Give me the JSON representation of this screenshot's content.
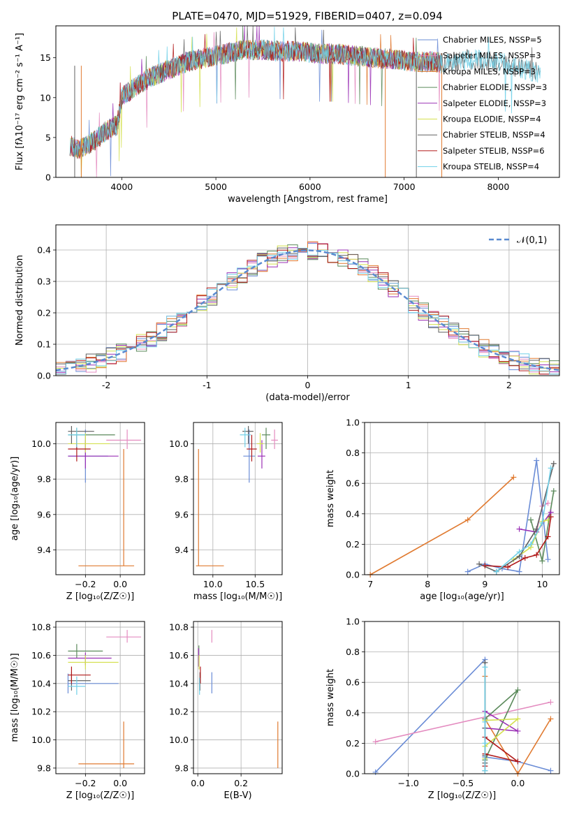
{
  "figure": {
    "title": "PLATE=0470, MJD=51929, FIBERID=0407, z=0.094"
  },
  "chart_data": [
    {
      "id": "spectrum",
      "type": "line",
      "title": "PLATE=0470, MJD=51929, FIBERID=0407, z=0.094",
      "xlabel": "wavelength [Angstrom, rest frame]",
      "ylabel": "Flux [fλ10⁻¹⁷ erg cm⁻² s⁻¹ A⁻¹]",
      "xlim": [
        3300,
        8650
      ],
      "ylim": [
        0,
        19
      ],
      "xticks": [
        4000,
        5000,
        6000,
        7000,
        8000
      ],
      "yticks": [
        0,
        5,
        10,
        15
      ],
      "grid": false,
      "legend_position": "top-right",
      "anchors_x": [
        3450,
        3550,
        3700,
        3850,
        3950,
        4000,
        4100,
        4300,
        4500,
        4700,
        4900,
        5100,
        5300,
        5500,
        5700,
        5900,
        6100,
        6300,
        6500,
        6700,
        6900,
        7100,
        7300,
        7400
      ],
      "anchors_y": [
        4,
        3.5,
        4.5,
        6,
        6.5,
        10,
        11,
        12.5,
        13.5,
        14.5,
        15,
        15.5,
        16,
        16,
        15.8,
        15.8,
        15.5,
        15.5,
        15.2,
        15.0,
        14.8,
        14.5,
        14.5,
        14.3
      ],
      "tail_x": [
        7400,
        7700,
        8000,
        8300,
        8450
      ],
      "tail_y": [
        14.3,
        14.8,
        14.5,
        13.5,
        13.0
      ],
      "series": [
        {
          "name": "Chabrier MILES, NSSP=5",
          "color": "#6a8cd6"
        },
        {
          "name": "Salpeter MILES, NSSP=3",
          "color": "#e48cc0"
        },
        {
          "name": "Kroupa MILES, NSSP=3",
          "color": "#e07a30"
        },
        {
          "name": "Chabrier ELODIE, NSSP=3",
          "color": "#5b8a5b"
        },
        {
          "name": "Salpeter ELODIE, NSSP=3",
          "color": "#9a30b5"
        },
        {
          "name": "Kroupa ELODIE, NSSP=4",
          "color": "#d4e050"
        },
        {
          "name": "Chabrier STELIB, NSSP=4",
          "color": "#606060"
        },
        {
          "name": "Salpeter STELIB, NSSP=6",
          "color": "#b01818"
        },
        {
          "name": "Kroupa STELIB, NSSP=4",
          "color": "#70d0e8"
        }
      ]
    },
    {
      "id": "residuals",
      "type": "histogram",
      "xlabel": "(data-model)/error",
      "ylabel": "Normed distribution",
      "xlim": [
        -2.5,
        2.5
      ],
      "ylim": [
        0,
        0.48
      ],
      "xticks": [
        -2,
        -1,
        0,
        1,
        2
      ],
      "yticks": [
        0.0,
        0.1,
        0.2,
        0.3,
        0.4
      ],
      "grid": true,
      "legend_position": "top-right",
      "reference_curve": {
        "name": "𝒩(0,1)",
        "color": "#5a8ad0",
        "mean": 0,
        "sigma": 1
      },
      "bin_width": 0.1
    },
    {
      "id": "age_vs_Z",
      "type": "scatter",
      "xlabel": "Z [log₁₀(Z/Z☉)]",
      "ylabel": "age  [log₁₀(age/yr)]",
      "xlim": [
        -0.37,
        0.14
      ],
      "ylim": [
        9.26,
        10.12
      ],
      "xticks": [
        -0.2,
        0.0
      ],
      "yticks": [
        9.4,
        9.6,
        9.8,
        10.0
      ],
      "grid": true,
      "errorbars": [
        {
          "color": "#6a8cd6",
          "x": -0.2,
          "y": 9.93,
          "xlo": -0.3,
          "xhi": -0.07,
          "ylo": 9.78,
          "yhi": 10.08
        },
        {
          "color": "#e48cc0",
          "x": 0.04,
          "y": 10.02,
          "xlo": -0.08,
          "xhi": 0.12,
          "ylo": 9.97,
          "yhi": 10.08
        },
        {
          "color": "#e07a30",
          "x": 0.02,
          "y": 9.31,
          "xlo": -0.24,
          "xhi": 0.08,
          "ylo": 9.31,
          "yhi": 9.97
        },
        {
          "color": "#5b8a5b",
          "x": -0.25,
          "y": 10.05,
          "xlo": -0.3,
          "xhi": -0.03,
          "ylo": 9.97,
          "yhi": 10.09
        },
        {
          "color": "#9a30b5",
          "x": -0.2,
          "y": 9.93,
          "xlo": -0.3,
          "xhi": -0.01,
          "ylo": 9.86,
          "yhi": 10.02
        },
        {
          "color": "#d4e050",
          "x": -0.2,
          "y": 10.0,
          "xlo": -0.3,
          "xhi": -0.06,
          "ylo": 9.95,
          "yhi": 10.06
        },
        {
          "color": "#606060",
          "x": -0.28,
          "y": 10.07,
          "xlo": -0.3,
          "xhi": -0.15,
          "ylo": 10.0,
          "yhi": 10.1
        },
        {
          "color": "#b01818",
          "x": -0.25,
          "y": 9.97,
          "xlo": -0.3,
          "xhi": -0.17,
          "ylo": 9.9,
          "yhi": 10.05
        },
        {
          "color": "#70d0e8",
          "x": -0.25,
          "y": 10.05,
          "xlo": -0.3,
          "xhi": -0.2,
          "ylo": 9.98,
          "yhi": 10.09
        }
      ]
    },
    {
      "id": "age_vs_mass",
      "type": "scatter",
      "xlabel": "mass [log₁₀(M/M☉)]",
      "xlim": [
        9.77,
        10.82
      ],
      "ylim": [
        9.26,
        10.12
      ],
      "xticks": [
        10.0,
        10.5
      ],
      "yticks": [
        9.4,
        9.6,
        9.8,
        10.0
      ],
      "grid": true,
      "errorbars": [
        {
          "color": "#6a8cd6",
          "x": 10.43,
          "y": 9.93,
          "xlo": 10.36,
          "xhi": 10.5,
          "ylo": 9.78,
          "yhi": 10.08
        },
        {
          "color": "#e48cc0",
          "x": 10.73,
          "y": 10.02,
          "xlo": 10.69,
          "xhi": 10.77,
          "ylo": 9.97,
          "yhi": 10.08
        },
        {
          "color": "#e07a30",
          "x": 9.83,
          "y": 9.31,
          "xlo": 9.8,
          "xhi": 10.13,
          "ylo": 9.31,
          "yhi": 9.97
        },
        {
          "color": "#5b8a5b",
          "x": 10.63,
          "y": 10.05,
          "xlo": 10.58,
          "xhi": 10.68,
          "ylo": 9.97,
          "yhi": 10.09
        },
        {
          "color": "#9a30b5",
          "x": 10.58,
          "y": 9.93,
          "xlo": 10.53,
          "xhi": 10.62,
          "ylo": 9.86,
          "yhi": 10.02
        },
        {
          "color": "#d4e050",
          "x": 10.56,
          "y": 10.0,
          "xlo": 10.52,
          "xhi": 10.6,
          "ylo": 9.95,
          "yhi": 10.06
        },
        {
          "color": "#606060",
          "x": 10.42,
          "y": 10.07,
          "xlo": 10.35,
          "xhi": 10.48,
          "ylo": 10.0,
          "yhi": 10.1
        },
        {
          "color": "#b01818",
          "x": 10.46,
          "y": 9.97,
          "xlo": 10.4,
          "xhi": 10.52,
          "ylo": 9.9,
          "yhi": 10.05
        },
        {
          "color": "#70d0e8",
          "x": 10.38,
          "y": 10.05,
          "xlo": 10.32,
          "xhi": 10.45,
          "ylo": 9.98,
          "yhi": 10.09
        }
      ]
    },
    {
      "id": "weight_vs_age",
      "type": "line",
      "xlabel": "age  [log₁₀(age/yr)]",
      "ylabel": "mass weight",
      "xlim": [
        6.9,
        10.3
      ],
      "ylim": [
        0,
        1
      ],
      "xticks": [
        7,
        8,
        9,
        10
      ],
      "yticks": [
        0.0,
        0.2,
        0.4,
        0.6,
        0.8,
        1.0
      ],
      "grid": true,
      "series": [
        {
          "color": "#6a8cd6",
          "x": [
            8.7,
            9.0,
            9.3,
            9.6,
            9.9,
            10.1
          ],
          "y": [
            0.02,
            0.07,
            0.04,
            0.02,
            0.75,
            0.1
          ]
        },
        {
          "color": "#e48cc0",
          "x": [
            9.9,
            10.0,
            10.1
          ],
          "y": [
            0.28,
            0.45,
            0.47
          ]
        },
        {
          "color": "#e07a30",
          "x": [
            7.0,
            8.7,
            9.5
          ],
          "y": [
            0.0,
            0.36,
            0.64
          ]
        },
        {
          "color": "#5b8a5b",
          "x": [
            9.8,
            10.0,
            10.2
          ],
          "y": [
            0.36,
            0.09,
            0.55
          ]
        },
        {
          "color": "#9a30b5",
          "x": [
            9.6,
            9.9,
            10.15
          ],
          "y": [
            0.3,
            0.28,
            0.41
          ]
        },
        {
          "color": "#d4e050",
          "x": [
            9.5,
            9.8,
            10.0,
            10.1
          ],
          "y": [
            0.1,
            0.18,
            0.35,
            0.36
          ]
        },
        {
          "color": "#606060",
          "x": [
            8.9,
            9.2,
            9.6,
            9.9,
            10.2
          ],
          "y": [
            0.07,
            0.02,
            0.12,
            0.3,
            0.73
          ]
        },
        {
          "color": "#b01818",
          "x": [
            9.0,
            9.4,
            9.7,
            9.9,
            10.1,
            10.15
          ],
          "y": [
            0.06,
            0.05,
            0.11,
            0.13,
            0.25,
            0.38
          ]
        },
        {
          "color": "#70d0e8",
          "x": [
            9.2,
            9.6,
            9.8,
            10.0,
            10.15
          ],
          "y": [
            0.02,
            0.15,
            0.2,
            0.34,
            0.7
          ]
        }
      ]
    },
    {
      "id": "mass_vs_Z",
      "type": "scatter",
      "xlabel": "Z [log₁₀(Z/Z☉)]",
      "ylabel": "mass [log₁₀(M/M☉)]",
      "xlim": [
        -0.37,
        0.14
      ],
      "ylim": [
        9.76,
        10.84
      ],
      "xticks": [
        -0.2,
        0.0
      ],
      "yticks": [
        9.8,
        10.0,
        10.2,
        10.4,
        10.6,
        10.8
      ],
      "grid": true,
      "errorbars": [
        {
          "color": "#6a8cd6",
          "x": -0.3,
          "y": 10.4,
          "xlo": -0.3,
          "xhi": -0.01,
          "ylo": 10.33,
          "yhi": 10.47
        },
        {
          "color": "#e48cc0",
          "x": 0.04,
          "y": 10.73,
          "xlo": -0.08,
          "xhi": 0.12,
          "ylo": 10.69,
          "yhi": 10.78
        },
        {
          "color": "#e07a30",
          "x": 0.02,
          "y": 9.83,
          "xlo": -0.24,
          "xhi": 0.08,
          "ylo": 9.8,
          "yhi": 10.13
        },
        {
          "color": "#5b8a5b",
          "x": -0.25,
          "y": 10.63,
          "xlo": -0.3,
          "xhi": -0.1,
          "ylo": 10.58,
          "yhi": 10.68
        },
        {
          "color": "#9a30b5",
          "x": -0.2,
          "y": 10.58,
          "xlo": -0.3,
          "xhi": -0.05,
          "ylo": 10.53,
          "yhi": 10.62
        },
        {
          "color": "#d4e050",
          "x": -0.2,
          "y": 10.55,
          "xlo": -0.3,
          "xhi": -0.01,
          "ylo": 10.5,
          "yhi": 10.6
        },
        {
          "color": "#606060",
          "x": -0.28,
          "y": 10.42,
          "xlo": -0.3,
          "xhi": -0.17,
          "ylo": 10.35,
          "yhi": 10.48
        },
        {
          "color": "#b01818",
          "x": -0.28,
          "y": 10.46,
          "xlo": -0.3,
          "xhi": -0.17,
          "ylo": 10.4,
          "yhi": 10.52
        },
        {
          "color": "#70d0e8",
          "x": -0.25,
          "y": 10.38,
          "xlo": -0.3,
          "xhi": -0.2,
          "ylo": 10.32,
          "yhi": 10.45
        }
      ]
    },
    {
      "id": "mass_vs_ebv",
      "type": "scatter",
      "xlabel": "E(B-V)",
      "xlim": [
        -0.02,
        0.39
      ],
      "ylim": [
        9.76,
        10.84
      ],
      "xticks": [
        0.0,
        0.2
      ],
      "yticks": [
        9.8,
        10.0,
        10.2,
        10.4,
        10.6,
        10.8
      ],
      "grid": true,
      "errorbars": [
        {
          "color": "#6a8cd6",
          "x": 0.065,
          "y": 10.4,
          "ylo": 10.33,
          "yhi": 10.48
        },
        {
          "color": "#e48cc0",
          "x": 0.065,
          "y": 10.73,
          "ylo": 10.69,
          "yhi": 10.78
        },
        {
          "color": "#e07a30",
          "x": 0.37,
          "y": 9.83,
          "ylo": 9.8,
          "yhi": 10.13
        },
        {
          "color": "#5b8a5b",
          "x": 0.005,
          "y": 10.63,
          "ylo": 10.58,
          "yhi": 10.67
        },
        {
          "color": "#9a30b5",
          "x": 0.004,
          "y": 10.58,
          "ylo": 10.52,
          "yhi": 10.65
        },
        {
          "color": "#d4e050",
          "x": 0.006,
          "y": 10.55,
          "ylo": 10.5,
          "yhi": 10.6
        },
        {
          "color": "#606060",
          "x": 0.01,
          "y": 10.42,
          "ylo": 10.35,
          "yhi": 10.48
        },
        {
          "color": "#b01818",
          "x": 0.012,
          "y": 10.46,
          "ylo": 10.4,
          "yhi": 10.52
        },
        {
          "color": "#70d0e8",
          "x": 0.008,
          "y": 10.38,
          "ylo": 10.32,
          "yhi": 10.44
        }
      ]
    },
    {
      "id": "weight_vs_Z",
      "type": "line",
      "xlabel": "Z [log₁₀(Z/Z☉)]",
      "ylabel": "mass weight",
      "xlim": [
        -1.4,
        0.38
      ],
      "ylim": [
        0,
        1
      ],
      "xticks": [
        -1.0,
        -0.5,
        0.0
      ],
      "yticks": [
        0.0,
        0.2,
        0.4,
        0.6,
        0.8,
        1.0
      ],
      "grid": true,
      "series": [
        {
          "color": "#6a8cd6",
          "x": [
            -1.3,
            -0.3,
            -0.3,
            0.0,
            0.3
          ],
          "y": [
            0.01,
            0.75,
            0.11,
            0.08,
            0.02
          ]
        },
        {
          "color": "#e48cc0",
          "x": [
            -1.3,
            0.3
          ],
          "y": [
            0.21,
            0.47
          ]
        },
        {
          "color": "#e07a30",
          "x": [
            -0.3,
            -0.3,
            0.0,
            0.3
          ],
          "y": [
            0.64,
            0.36,
            0.0,
            0.36
          ]
        },
        {
          "color": "#5b8a5b",
          "x": [
            -0.3,
            0.0,
            -0.3
          ],
          "y": [
            0.09,
            0.55,
            0.36
          ]
        },
        {
          "color": "#9a30b5",
          "x": [
            -0.3,
            0.0,
            -0.3
          ],
          "y": [
            0.41,
            0.28,
            0.3
          ]
        },
        {
          "color": "#d4e050",
          "x": [
            -0.3,
            0.0,
            -0.3,
            -0.3
          ],
          "y": [
            0.35,
            0.36,
            0.18,
            0.1
          ]
        },
        {
          "color": "#606060",
          "x": [
            -0.3,
            -0.3,
            -0.3,
            -0.3,
            -0.3
          ],
          "y": [
            0.73,
            0.3,
            0.12,
            0.07,
            0.02
          ]
        },
        {
          "color": "#b01818",
          "x": [
            -0.3,
            0.0,
            -0.3,
            -0.3
          ],
          "y": [
            0.24,
            0.08,
            0.13,
            0.05
          ]
        },
        {
          "color": "#70d0e8",
          "x": [
            -0.3,
            -0.3,
            -0.3,
            -0.3
          ],
          "y": [
            0.7,
            0.34,
            0.2,
            0.02
          ]
        }
      ]
    }
  ]
}
